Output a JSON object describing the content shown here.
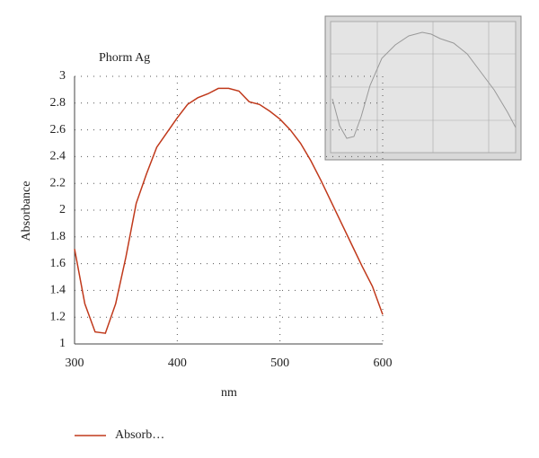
{
  "chart_data": {
    "type": "line",
    "title": "Phorm Ag",
    "x_label": "nm",
    "y_label": "Absorbance",
    "x": [
      300,
      310,
      320,
      330,
      340,
      350,
      360,
      370,
      380,
      390,
      400,
      410,
      420,
      430,
      440,
      450,
      460,
      470,
      480,
      490,
      500,
      510,
      520,
      530,
      540,
      550,
      560,
      570,
      580,
      590,
      600
    ],
    "series": [
      {
        "name": "Absorb…",
        "color": "#c0391b",
        "values": [
          1.71,
          1.3,
          1.09,
          1.08,
          1.3,
          1.65,
          2.05,
          2.27,
          2.47,
          2.58,
          2.69,
          2.79,
          2.84,
          2.87,
          2.91,
          2.91,
          2.89,
          2.81,
          2.79,
          2.74,
          2.68,
          2.6,
          2.5,
          2.37,
          2.22,
          2.06,
          1.9,
          1.74,
          1.58,
          1.43,
          1.22
        ]
      }
    ],
    "xlim": [
      300,
      600
    ],
    "xticks": [
      300,
      400,
      500,
      600
    ],
    "ylim": [
      1,
      3
    ],
    "yticks": [
      1,
      1.2,
      1.4,
      1.6,
      1.8,
      2,
      2.2,
      2.4,
      2.6,
      2.8,
      3
    ],
    "grid": true
  }
}
